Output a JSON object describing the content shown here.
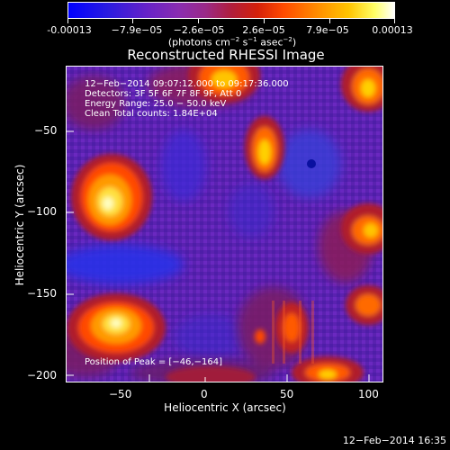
{
  "colorbar": {
    "ticks": [
      "-0.00013",
      "−7.9e−05",
      "−2.6e−05",
      "2.6e−05",
      "7.9e−05",
      "0.00013"
    ],
    "units": "(photons cm",
    "units_exp1": "−2",
    "units_mid": " s",
    "units_exp2": "−1",
    "units_mid2": " asec",
    "units_exp3": "−2",
    "units_end": ")"
  },
  "plot": {
    "title": "Reconstructed RHESSI Image",
    "xlabel": "Heliocentric X (arcsec)",
    "ylabel": "Heliocentric Y (arcsec)",
    "x_ticks": [
      "−50",
      "0",
      "50",
      "100"
    ],
    "y_ticks": [
      "−50",
      "−100",
      "−150",
      "−200"
    ],
    "info_lines": [
      "12−Feb−2014 09:07:12.000 to 09:17:36.000",
      "Detectors: 3F 5F 6F 7F 8F 9F, Att 0",
      "Energy Range: 25.0 − 50.0 keV",
      "Clean     Total counts: 1.84E+04"
    ],
    "peak_text": "Position of Peak = [−46,−164]"
  },
  "footer": {
    "timestamp": "12−Feb−2014 16:35"
  }
}
